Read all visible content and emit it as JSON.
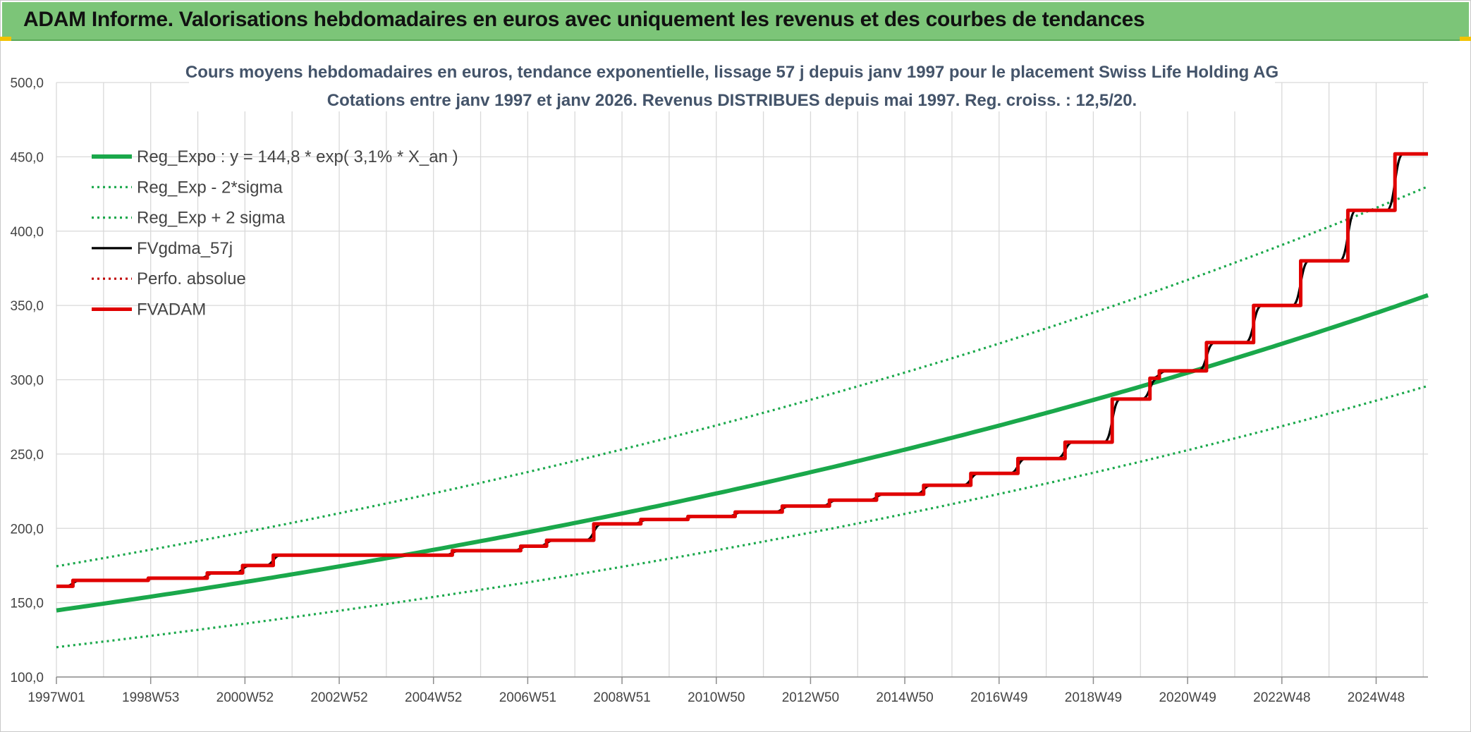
{
  "header": {
    "title": "ADAM Informe. Valorisations hebdomadaires en euros avec uniquement les revenus et des courbes de tendances"
  },
  "chart_data": {
    "type": "line",
    "title_line1": "Cours moyens hebdomadaires en euros, tendance exponentielle, lissage 57 j depuis janv 1997 pour le placement Swiss Life Holding AG",
    "title_line2": "Cotations entre janv 1997 et janv 2026. Revenus DISTRIBUES depuis mai 1997. Reg. croiss. : 12,5/20.",
    "x_range": [
      1997.0,
      2026.1
    ],
    "x_tick_labels": [
      {
        "label": "1997W01",
        "x": 1997.0
      },
      {
        "label": "1998W53",
        "x": 1999.0
      },
      {
        "label": "2000W52",
        "x": 2001.0
      },
      {
        "label": "2002W52",
        "x": 2003.0
      },
      {
        "label": "2004W52",
        "x": 2005.0
      },
      {
        "label": "2006W51",
        "x": 2007.0
      },
      {
        "label": "2008W51",
        "x": 2009.0
      },
      {
        "label": "2010W50",
        "x": 2011.0
      },
      {
        "label": "2012W50",
        "x": 2013.0
      },
      {
        "label": "2014W50",
        "x": 2015.0
      },
      {
        "label": "2016W49",
        "x": 2017.0
      },
      {
        "label": "2018W49",
        "x": 2019.0
      },
      {
        "label": "2020W49",
        "x": 2021.0
      },
      {
        "label": "2022W48",
        "x": 2023.0
      },
      {
        "label": "2024W48",
        "x": 2025.0
      }
    ],
    "ylim": [
      100,
      500
    ],
    "y_ticks": [
      "100,0",
      "150,0",
      "200,0",
      "250,0",
      "300,0",
      "350,0",
      "400,0",
      "450,0",
      "500,0"
    ],
    "y_tick_values": [
      100,
      150,
      200,
      250,
      300,
      350,
      400,
      450,
      500
    ],
    "grid": true,
    "legend_position": "top-left",
    "series": [
      {
        "name": "Reg_Expo : y = 144,8 * exp( 3,1% *  X_an )",
        "color": "#1aa84b",
        "style": "solid-thick",
        "kind": "exp",
        "a": 144.8,
        "r": 0.031,
        "factor": 1.0
      },
      {
        "name": "Reg_Exp - 2*sigma",
        "color": "#1aa84b",
        "style": "dotted",
        "kind": "exp",
        "a": 144.8,
        "r": 0.031,
        "factor": 0.829
      },
      {
        "name": "Reg_Exp + 2 sigma",
        "color": "#1aa84b",
        "style": "dotted",
        "kind": "exp",
        "a": 144.8,
        "r": 0.031,
        "factor": 1.205
      },
      {
        "name": "FVgdma_57j",
        "color": "#000000",
        "style": "solid-smooth",
        "kind": "smooth"
      },
      {
        "name": "Perfo. absolue",
        "color": "#c00000",
        "style": "dotted",
        "kind": "none"
      },
      {
        "name": "FVADAM",
        "color": "#e00000",
        "style": "solid-step",
        "kind": "step",
        "steps": [
          [
            1997.0,
            161.0
          ],
          [
            1997.35,
            165.0
          ],
          [
            1998.95,
            166.5
          ],
          [
            2000.2,
            170.0
          ],
          [
            2000.95,
            175.0
          ],
          [
            2001.6,
            182.0
          ],
          [
            2005.4,
            185.0
          ],
          [
            2006.85,
            188.0
          ],
          [
            2007.4,
            192.0
          ],
          [
            2008.4,
            203.0
          ],
          [
            2009.4,
            206.0
          ],
          [
            2010.4,
            208.0
          ],
          [
            2011.4,
            211.0
          ],
          [
            2012.4,
            215.0
          ],
          [
            2013.4,
            219.0
          ],
          [
            2014.4,
            223.0
          ],
          [
            2015.4,
            229.0
          ],
          [
            2016.4,
            237.0
          ],
          [
            2017.4,
            247.0
          ],
          [
            2018.4,
            258.0
          ],
          [
            2019.4,
            287.0
          ],
          [
            2020.2,
            301.0
          ],
          [
            2020.4,
            306.0
          ],
          [
            2021.4,
            325.0
          ],
          [
            2022.4,
            350.0
          ],
          [
            2023.4,
            380.0
          ],
          [
            2024.4,
            414.0
          ],
          [
            2025.4,
            452.0
          ]
        ],
        "end_x": 2026.1
      }
    ]
  }
}
